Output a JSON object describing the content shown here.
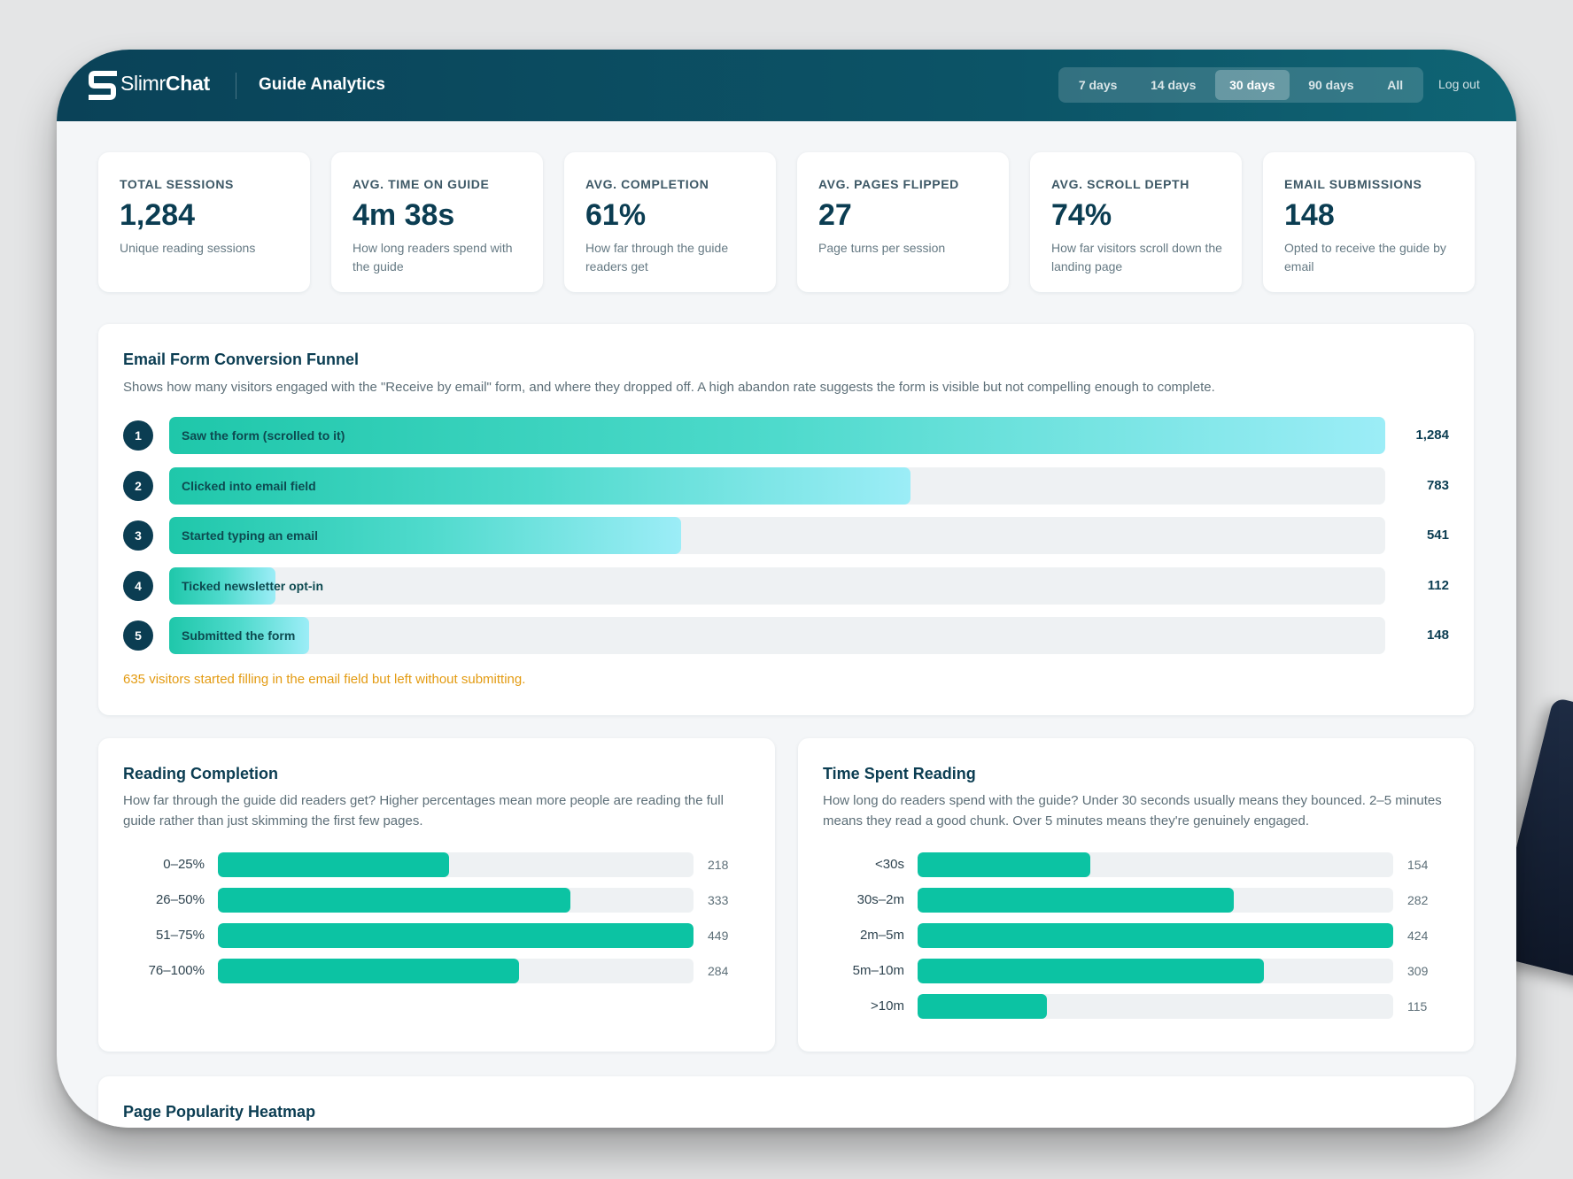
{
  "header": {
    "brand_light": "Slimr",
    "brand_bold": "Chat",
    "page_title": "Guide Analytics",
    "ranges": [
      "7 days",
      "14 days",
      "30 days",
      "90 days",
      "All"
    ],
    "active_range": "30 days",
    "logout": "Log out"
  },
  "stats": [
    {
      "label": "TOTAL SESSIONS",
      "value": "1,284",
      "desc": "Unique reading sessions"
    },
    {
      "label": "AVG. TIME ON GUIDE",
      "value": "4m 38s",
      "desc": "How long readers spend with the guide"
    },
    {
      "label": "AVG. COMPLETION",
      "value": "61%",
      "desc": "How far through the guide readers get"
    },
    {
      "label": "AVG. PAGES FLIPPED",
      "value": "27",
      "desc": "Page turns per session"
    },
    {
      "label": "AVG. SCROLL DEPTH",
      "value": "74%",
      "desc": "How far visitors scroll down the landing page"
    },
    {
      "label": "EMAIL SUBMISSIONS",
      "value": "148",
      "desc": "Opted to receive the guide by email"
    }
  ],
  "funnel": {
    "title": "Email Form Conversion Funnel",
    "desc": "Shows how many visitors engaged with the \"Receive by email\" form, and where they dropped off. A high abandon rate suggests the form is visible but not compelling enough to complete.",
    "steps": [
      {
        "num": "1",
        "label": "Saw the form (scrolled to it)",
        "value": "1,284",
        "count": 1284
      },
      {
        "num": "2",
        "label": "Clicked into email field",
        "value": "783",
        "count": 783
      },
      {
        "num": "3",
        "label": "Started typing an email",
        "value": "541",
        "count": 541
      },
      {
        "num": "4",
        "label": "Ticked newsletter opt-in",
        "value": "112",
        "count": 112
      },
      {
        "num": "5",
        "label": "Submitted the form",
        "value": "148",
        "count": 148
      }
    ],
    "warning": "635 visitors started filling in the email field but left without submitting."
  },
  "completion": {
    "title": "Reading Completion",
    "desc": "How far through the guide did readers get? Higher percentages mean more people are reading the full guide rather than just skimming the first few pages.",
    "rows": [
      {
        "label": "0–25%",
        "value": "218",
        "count": 218
      },
      {
        "label": "26–50%",
        "value": "333",
        "count": 333
      },
      {
        "label": "51–75%",
        "value": "449",
        "count": 449
      },
      {
        "label": "76–100%",
        "value": "284",
        "count": 284
      }
    ]
  },
  "time_spent": {
    "title": "Time Spent Reading",
    "desc": "How long do readers spend with the guide? Under 30 seconds usually means they bounced. 2–5 minutes means they read a good chunk. Over 5 minutes means they're genuinely engaged.",
    "rows": [
      {
        "label": "<30s",
        "value": "154",
        "count": 154
      },
      {
        "label": "30s–2m",
        "value": "282",
        "count": 282
      },
      {
        "label": "2m–5m",
        "value": "424",
        "count": 424
      },
      {
        "label": "5m–10m",
        "value": "309",
        "count": 309
      },
      {
        "label": ">10m",
        "value": "115",
        "count": 115
      }
    ]
  },
  "heatmap": {
    "title": "Page Popularity Heatmap"
  },
  "colors": {
    "header": "#0c5467",
    "accent": "#0cc3a3",
    "warning": "#e39b12",
    "navy": "#0b3d52"
  }
}
